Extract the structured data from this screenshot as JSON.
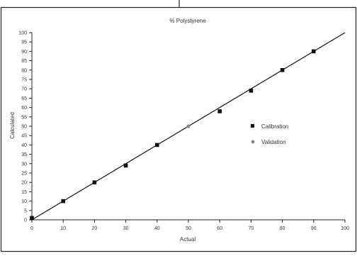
{
  "chart_data": {
    "type": "scatter",
    "title": "% Polystyrene",
    "xlabel": "Actual",
    "ylabel": "Calculated",
    "xlim": [
      0,
      100
    ],
    "ylim": [
      0,
      100
    ],
    "x_ticks": [
      0,
      10,
      20,
      30,
      40,
      50,
      60,
      70,
      80,
      90,
      100
    ],
    "y_ticks": [
      0,
      5,
      10,
      15,
      20,
      25,
      30,
      35,
      40,
      45,
      50,
      55,
      60,
      65,
      70,
      75,
      80,
      85,
      90,
      95,
      100
    ],
    "y_tick_labels": [
      "0",
      "5",
      "10",
      "15",
      "20",
      "25",
      "30",
      "35",
      "40",
      "45",
      "50",
      "55",
      "60",
      "65",
      "70",
      "75",
      "80",
      "85",
      "90",
      "95",
      "100"
    ],
    "grid": false,
    "legend_position": "right",
    "series": [
      {
        "name": "Calibration",
        "marker": "square",
        "color": "#111111",
        "points": [
          [
            0,
            1
          ],
          [
            10,
            10
          ],
          [
            20,
            20
          ],
          [
            30,
            29
          ],
          [
            40,
            40
          ],
          [
            60,
            58
          ],
          [
            70,
            69
          ],
          [
            80,
            80
          ],
          [
            90,
            90
          ]
        ]
      },
      {
        "name": "Validation",
        "marker": "circle",
        "color": "#888888",
        "points": [
          [
            50,
            50
          ]
        ]
      }
    ],
    "fit_line": {
      "x": [
        0,
        100
      ],
      "y": [
        0,
        100
      ],
      "color": "#111111"
    }
  }
}
